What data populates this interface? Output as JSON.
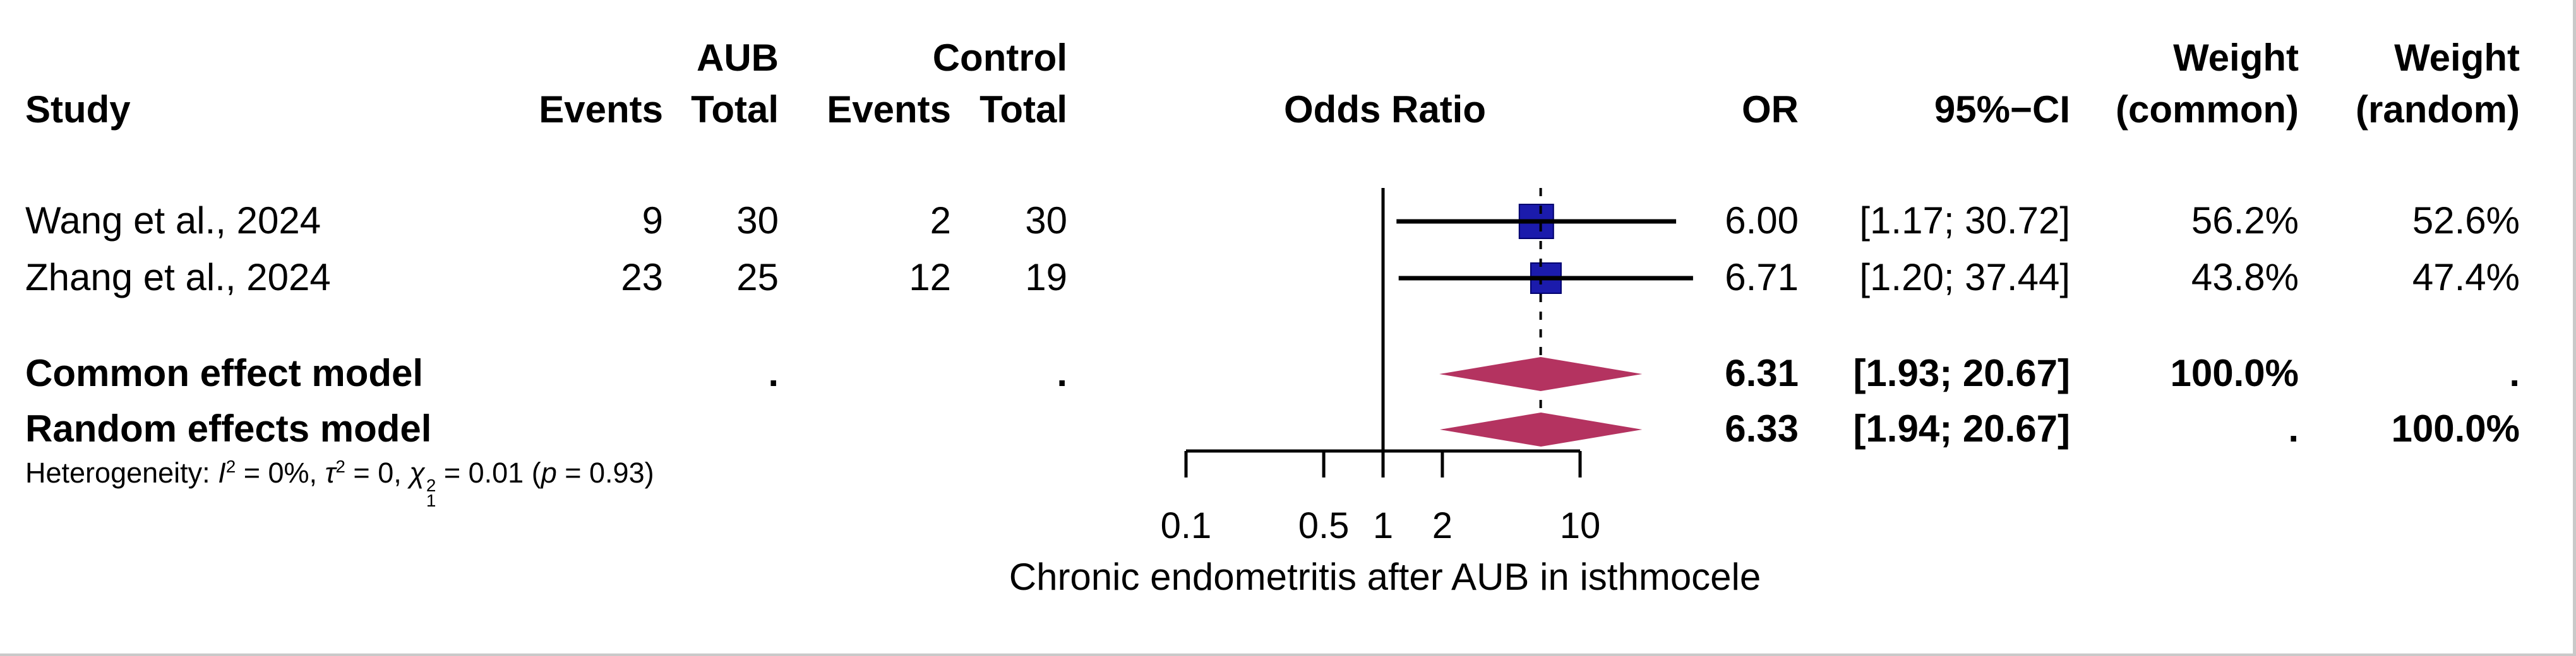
{
  "chart_data": {
    "type": "forest",
    "effect_measure": "Odds Ratio",
    "axis": {
      "scale": "log",
      "tick_values": [
        0.1,
        0.5,
        1,
        2,
        10
      ],
      "tick_labels": [
        "0.1",
        "0.5",
        "1",
        "2",
        "10"
      ],
      "range": [
        0.1,
        10
      ],
      "null_line": 1,
      "pooled_line_at": 6.31,
      "caption": "Chronic endometritis after AUB in isthmocele"
    },
    "headers": {
      "study": "Study",
      "group1": "AUB",
      "group2": "Control",
      "events": "Events",
      "total": "Total",
      "plot": "Odds Ratio",
      "or": "OR",
      "ci": "95%−CI",
      "weight": "Weight",
      "weight_common": "(common)",
      "weight_random": "(random)"
    },
    "studies": [
      {
        "study": "Wang et al., 2024",
        "events_aub": "9",
        "total_aub": "30",
        "events_control": "2",
        "total_control": "30",
        "or": 6.0,
        "ci_low": 1.17,
        "ci_high": 30.72,
        "or_label": "6.00",
        "ci_label": "[1.17; 30.72]",
        "weight_common": "56.2%",
        "weight_random": "52.6%",
        "weight_common_frac": 0.562
      },
      {
        "study": "Zhang et al., 2024",
        "events_aub": "23",
        "total_aub": "25",
        "events_control": "12",
        "total_control": "19",
        "or": 6.71,
        "ci_low": 1.2,
        "ci_high": 37.44,
        "or_label": "6.71",
        "ci_label": "[1.20; 37.44]",
        "weight_common": "43.8%",
        "weight_random": "47.4%",
        "weight_common_frac": 0.438
      }
    ],
    "pooled": [
      {
        "label": "Common effect model",
        "total_aub_dot": ".",
        "total_control_dot": ".",
        "or": 6.31,
        "ci_low": 1.93,
        "ci_high": 20.67,
        "or_label": "6.31",
        "ci_label": "[1.93; 20.67]",
        "weight_common": "100.0%",
        "weight_random": "."
      },
      {
        "label": "Random effects model",
        "or": 6.33,
        "ci_low": 1.94,
        "ci_high": 20.67,
        "or_label": "6.33",
        "ci_label": "[1.94; 20.67]",
        "weight_common": ".",
        "weight_random": "100.0%"
      }
    ],
    "heterogeneity": {
      "label": "Heterogeneity:",
      "i": "I",
      "i_sup": "2",
      "seg1": " = 0%, ",
      "tau": "τ",
      "tau_sup": "2",
      "seg2": " = 0, ",
      "chi": "χ",
      "chi_sup": "2",
      "chi_sub": "1",
      "seg3": " = 0.01 (",
      "p": "p",
      "seg4": " = 0.93)"
    },
    "colors": {
      "square": "#1b1bac",
      "square_border": "#00006e",
      "diamond": "#b43360",
      "line": "#000000",
      "text": "#000000",
      "edge": "#c9c9c9"
    }
  }
}
